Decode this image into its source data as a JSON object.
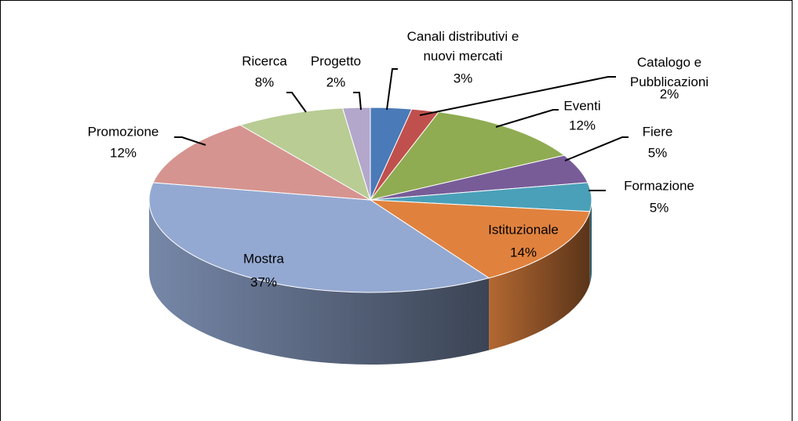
{
  "chart_data": {
    "type": "pie3d",
    "categories": [
      "Canali distributivi e nuovi mercati",
      "Catalogo e Pubblicazioni",
      "Eventi",
      "Fiere",
      "Formazione",
      "Istituzionale",
      "Mostra",
      "Promozione",
      "Ricerca",
      "Progetto"
    ],
    "values": [
      3,
      2,
      12,
      5,
      5,
      14,
      37,
      12,
      8,
      2
    ],
    "value_labels": [
      "3%",
      "2%",
      "12%",
      "5%",
      "5%",
      "14%",
      "37%",
      "12%",
      "8%",
      "2%"
    ],
    "colors": [
      "#4a7ab8",
      "#c0504d",
      "#8fac52",
      "#785c98",
      "#4aa0b8",
      "#e0823e",
      "#94a9d2",
      "#d69490",
      "#b8cc94",
      "#b3a7cc"
    ]
  }
}
